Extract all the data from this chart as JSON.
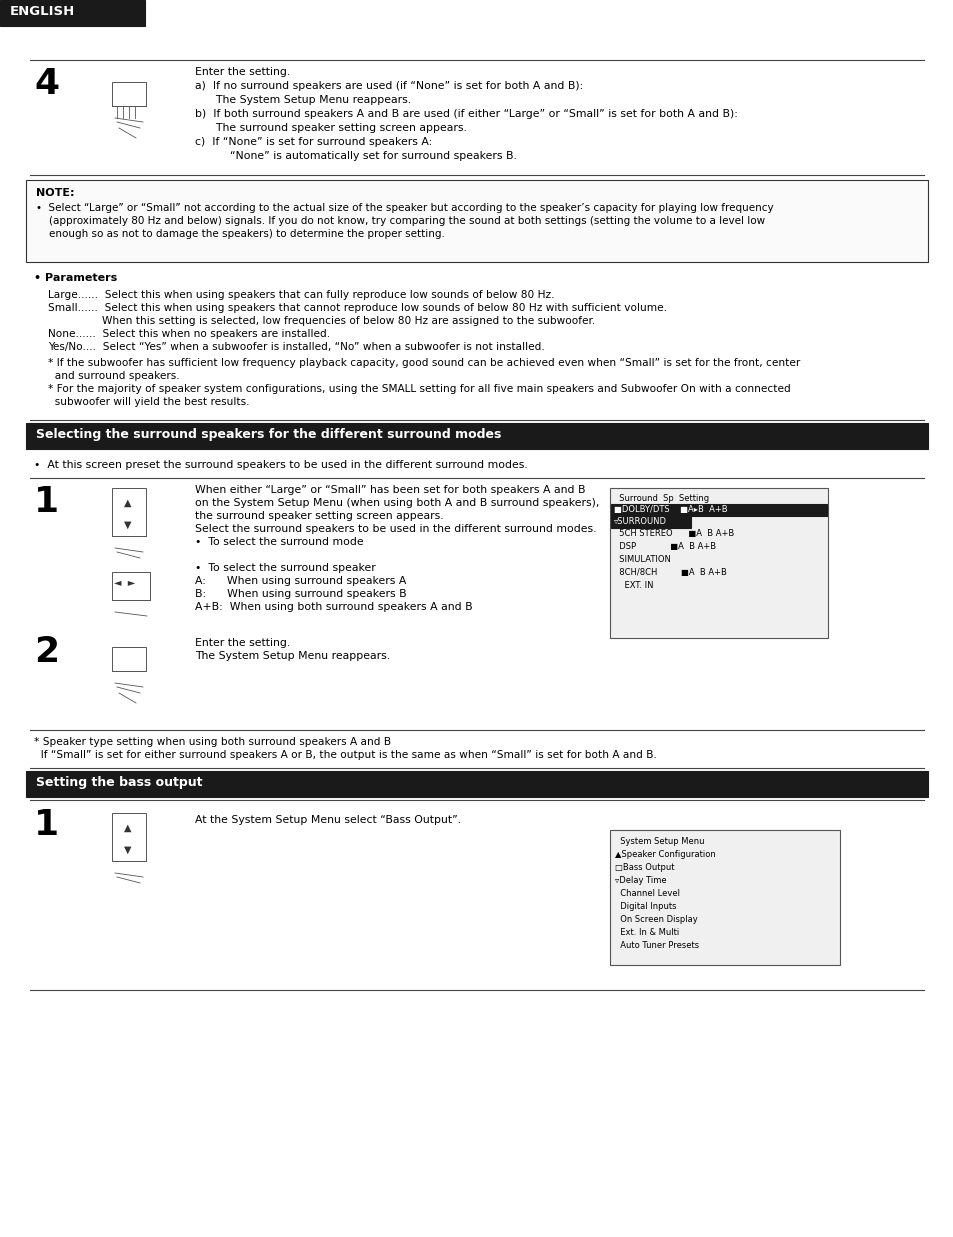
{
  "page_bg": "#ffffff",
  "header_bg": "#1a1a1a",
  "header_text": "ENGLISH",
  "header_text_color": "#ffffff",
  "section_bar_bg": "#1a1a1a",
  "section_bar_text_color": "#ffffff",
  "note_box_border": "#333333",
  "note_box_bg": "#ffffff",
  "section1_title": "Selecting the surround speakers for the different surround modes",
  "section2_title": "Setting the bass output",
  "step4_number": "4",
  "step4_text_lines": [
    [
      "Enter the setting.",
      0
    ],
    [
      "a)  If no surround speakers are used (if “None” is set for both A and B):",
      14
    ],
    [
      "      The System Setup Menu reappears.",
      28
    ],
    [
      "b)  If both surround speakers A and B are used (if either “Large” or “Small” is set for both A and B):",
      42
    ],
    [
      "      The surround speaker setting screen appears.",
      56
    ],
    [
      "c)  If “None” is set for surround speakers A:",
      70
    ],
    [
      "          “None” is automatically set for surround speakers B.",
      84
    ]
  ],
  "note_title": "NOTE:",
  "note_lines": [
    "•  Select “Large” or “Small” not according to the actual size of the speaker but according to the speaker’s capacity for playing low frequency",
    "    (approximately 80 Hz and below) signals. If you do not know, try comparing the sound at both settings (setting the volume to a level low",
    "    enough so as not to damage the speakers) to determine the proper setting."
  ],
  "params_title": "• Parameters",
  "params_lines": [
    [
      "Large......  Select this when using speakers that can fully reproduce low sounds of below 80 Hz.",
      0
    ],
    [
      "Small......  Select this when using speakers that cannot reproduce low sounds of below 80 Hz with sufficient volume.",
      13
    ],
    [
      "                When this setting is selected, low frequencies of below 80 Hz are assigned to the subwoofer.",
      26
    ],
    [
      "None......  Select this when no speakers are installed.",
      39
    ],
    [
      "Yes/No....  Select “Yes” when a subwoofer is installed, “No” when a subwoofer is not installed.",
      52
    ],
    [
      "* If the subwoofer has sufficient low frequency playback capacity, good sound can be achieved even when “Small” is set for the front, center",
      68
    ],
    [
      "  and surround speakers.",
      81
    ],
    [
      "* For the majority of speaker system configurations, using the SMALL setting for all five main speakers and Subwoofer On with a connected",
      94
    ],
    [
      "  subwoofer will yield the best results.",
      107
    ]
  ],
  "surr_section_bullet": "•  At this screen preset the surround speakers to be used in the different surround modes.",
  "step1s_number": "1",
  "step1s_lines": [
    [
      "When either “Large” or “Small” has been set for both speakers A and B",
      0
    ],
    [
      "on the System Setup Menu (when using both A and B surround speakers),",
      13
    ],
    [
      "the surround speaker setting screen appears.",
      26
    ],
    [
      "Select the surround speakers to be used in the different surround modes.",
      39
    ],
    [
      "•  To select the surround mode",
      52
    ],
    [
      "",
      65
    ],
    [
      "•  To select the surround speaker",
      78
    ],
    [
      "A:      When using surround speakers A",
      91
    ],
    [
      "B:      When using surround speakers B",
      104
    ],
    [
      "A+B:  When using both surround speakers A and B",
      117
    ]
  ],
  "step2_number": "2",
  "step2_lines": [
    "Enter the setting.",
    "The System Setup Menu reappears."
  ],
  "footnote_lines": [
    "* Speaker type setting when using both surround speakers A and B",
    "  If “Small” is set for either surround speakers A or B, the output is the same as when “Small” is set for both A and B."
  ],
  "bass_step1_number": "1",
  "bass_bullet": "At the System Setup Menu select “Bass Output”.",
  "screen1_lines": [
    "  Surround  Sp  Setting",
    "■DOLBY/DTS      ■A▸B A+B",
    "▿SURROUND",
    "  5CH STEREO      ■A  B A+B",
    "  DSP             ■A  B A+B",
    "  SIMULATION",
    "  8CH/8CH         ■A  B A+B",
    "    EXT. IN"
  ],
  "screen2_lines": [
    "  System Setup Menu",
    "▲Speaker Configuration",
    "□Bass Output",
    "▿Delay Time",
    "  Channel Level",
    "  Digital Inputs",
    "  On Screen Display",
    "  Ext. In & Multi",
    "  Auto Tuner Presets"
  ]
}
